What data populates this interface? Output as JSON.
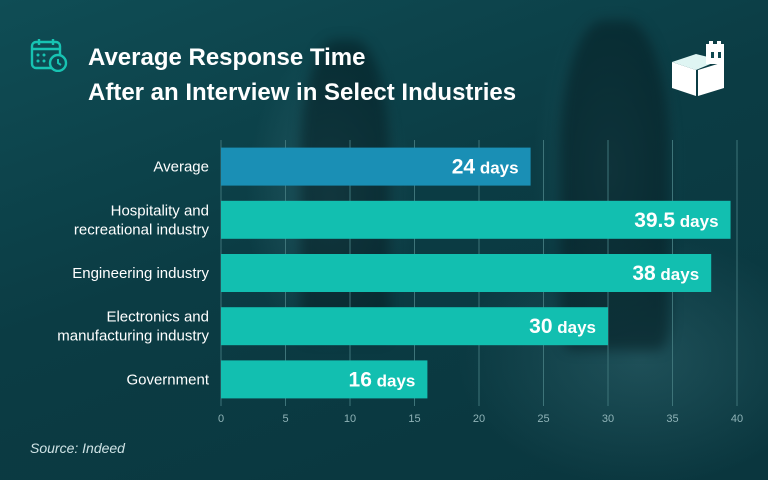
{
  "header": {
    "title_line1": "Average Response Time",
    "title_line2": "After an Interview in Select Industries"
  },
  "footer": {
    "source": "Source: Indeed"
  },
  "icons": {
    "left": "calendar-clock-icon",
    "right": "book-tower-logo-icon"
  },
  "colors": {
    "highlight_bar": "#1a8fb5",
    "bar": "#12bfb0",
    "background": "#0d4750",
    "grid": "#3e7479"
  },
  "chart_data": {
    "type": "bar",
    "orientation": "horizontal",
    "categories": [
      [
        "Average"
      ],
      [
        "Hospitality and",
        "recreational industry"
      ],
      [
        "Engineering industry"
      ],
      [
        "Electronics and",
        "manufacturing industry"
      ],
      [
        "Government"
      ]
    ],
    "values": [
      24,
      39.5,
      38,
      30,
      16
    ],
    "value_labels": [
      "24",
      "39.5",
      "38",
      "30",
      "16"
    ],
    "unit": "days",
    "highlight_index": 0,
    "xlim": [
      0,
      40
    ],
    "xticks": [
      0,
      5,
      10,
      15,
      20,
      25,
      30,
      35,
      40
    ],
    "grid": true
  }
}
